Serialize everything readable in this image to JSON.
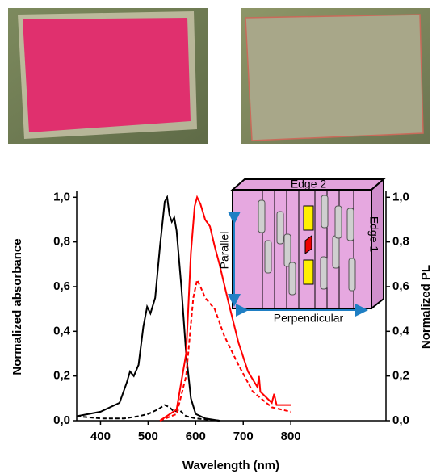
{
  "chart_data": {
    "type": "line",
    "xlabel": "Wavelength (nm)",
    "ylabel": "Normalized absorbance",
    "y2label": "Normalized PL",
    "annotations": [
      "Edge 2",
      "Edge 1",
      "Parallel",
      "Perpendicular"
    ],
    "xlim": [
      350,
      1000
    ],
    "xticks": [
      400,
      500,
      600,
      700,
      800
    ],
    "ylim": [
      0,
      1.03
    ],
    "yticks": [
      {
        "value": 0,
        "label": "0,0"
      },
      {
        "value": 0.2,
        "label": "0,2"
      },
      {
        "value": 0.4,
        "label": "0,4"
      },
      {
        "value": 0.6,
        "label": "0,6"
      },
      {
        "value": 0.8,
        "label": "0,8"
      },
      {
        "value": 1,
        "label": "1,0"
      }
    ],
    "y2lim": [
      0,
      1.03
    ],
    "y2ticks": [
      {
        "value": 0,
        "label": "0,0"
      },
      {
        "value": 0.2,
        "label": "0,2"
      },
      {
        "value": 0.4,
        "label": "0,4"
      },
      {
        "value": 0.6,
        "label": "0,6"
      },
      {
        "value": 0.8,
        "label": "0,8"
      },
      {
        "value": 1,
        "label": "1,0"
      }
    ],
    "series": [
      {
        "color": "#000000",
        "dash": false,
        "x": [
          350,
          400,
          440,
          455,
          462,
          470,
          480,
          490,
          498,
          505,
          515,
          525,
          535,
          540,
          545,
          550,
          555,
          560,
          570,
          580,
          590,
          600,
          620,
          650
        ],
        "values": [
          0.02,
          0.04,
          0.08,
          0.17,
          0.22,
          0.2,
          0.25,
          0.42,
          0.51,
          0.48,
          0.55,
          0.78,
          0.98,
          1.0,
          0.92,
          0.89,
          0.91,
          0.85,
          0.6,
          0.3,
          0.1,
          0.03,
          0.01,
          0
        ]
      },
      {
        "color": "#000000",
        "dash": true,
        "x": [
          350,
          400,
          450,
          480,
          500,
          520,
          535,
          545,
          555,
          565,
          580,
          600,
          650
        ],
        "values": [
          0.02,
          0.01,
          0.01,
          0.02,
          0.03,
          0.05,
          0.07,
          0.06,
          0.04,
          0.05,
          0.02,
          0.01,
          0
        ]
      },
      {
        "color": "#ff0000",
        "dash": false,
        "axis": "y2",
        "x": [
          525,
          560,
          580,
          590,
          598,
          603,
          610,
          620,
          630,
          640,
          650,
          670,
          690,
          710,
          730,
          733,
          736,
          760,
          765,
          770,
          800
        ],
        "values": [
          0,
          0.05,
          0.3,
          0.75,
          0.96,
          1.0,
          0.97,
          0.9,
          0.87,
          0.78,
          0.7,
          0.52,
          0.35,
          0.22,
          0.15,
          0.2,
          0.13,
          0.08,
          0.12,
          0.07,
          0.07
        ]
      },
      {
        "color": "#ff0000",
        "dash": true,
        "axis": "y2",
        "x": [
          525,
          560,
          580,
          595,
          603,
          610,
          620,
          640,
          660,
          690,
          720,
          760,
          800
        ],
        "values": [
          0,
          0.03,
          0.2,
          0.55,
          0.63,
          0.6,
          0.55,
          0.5,
          0.38,
          0.25,
          0.13,
          0.06,
          0.04
        ]
      }
    ]
  }
}
